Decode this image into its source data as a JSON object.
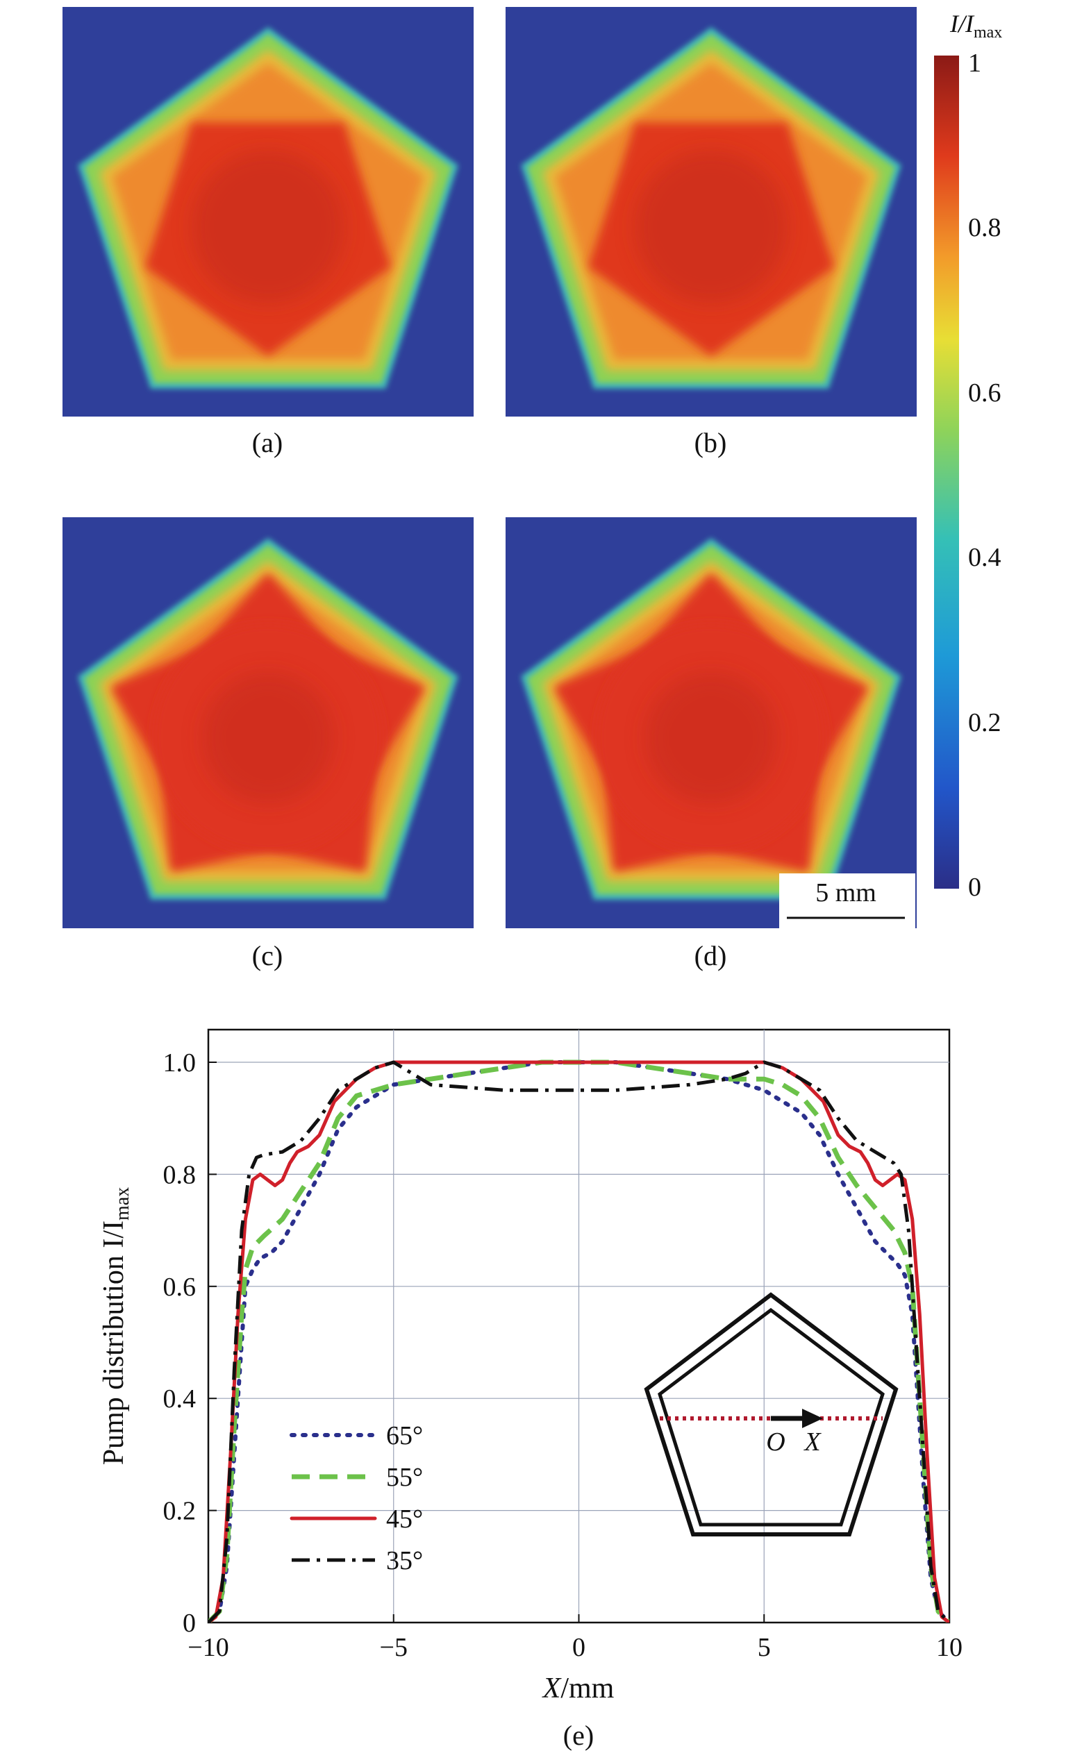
{
  "colors": {
    "background_blue": "#2f3f9a",
    "colorbar_stops": [
      "#2b2e87",
      "#2256c9",
      "#1e9ad7",
      "#35c0b6",
      "#8ed35a",
      "#e8de35",
      "#f29a2a",
      "#df3a1c",
      "#8b1a16"
    ],
    "series_65": "#2a2f8c",
    "series_55": "#6cc24a",
    "series_45": "#d0202a",
    "series_35": "#111111"
  },
  "maps": {
    "panel_labels": [
      "(a)",
      "(b)",
      "(c)",
      "(d)"
    ],
    "scalebar_label": "5 mm",
    "colorbar": {
      "title_main": "I/I",
      "title_sub": "max",
      "ticks": [
        "1",
        "0.8",
        "0.6",
        "0.4",
        "0.2",
        "0"
      ]
    }
  },
  "chart_data": {
    "type": "line",
    "panel_label": "(e)",
    "xlabel_main": "X",
    "xlabel_unit": "/mm",
    "ylabel_main": "Pump distribution I/I",
    "ylabel_sub": "max",
    "xlim": [
      -10,
      10
    ],
    "ylim": [
      0,
      1.05
    ],
    "xticks": [
      -10,
      -5,
      0,
      5,
      10
    ],
    "xtick_labels": [
      "−10",
      "−5",
      "0",
      "5",
      "10"
    ],
    "yticks": [
      0,
      0.2,
      0.4,
      0.6,
      0.8,
      1.0
    ],
    "ytick_labels": [
      "0",
      "0.2",
      "0.4",
      "0.6",
      "0.8",
      "1.0"
    ],
    "grid": true,
    "legend_position": "bottom-left",
    "inset_labels": [
      "O",
      "X"
    ],
    "series": [
      {
        "name": "65°",
        "style": "dotted",
        "x": [
          -10,
          -9.7,
          -9.5,
          -9.3,
          -9.1,
          -9.0,
          -8.8,
          -8.6,
          -8.3,
          -8.0,
          -7.5,
          -7.0,
          -6.5,
          -6.0,
          -5.5,
          -5.0,
          -4.0,
          -3.0,
          -2.0,
          -1.0,
          0,
          1.0,
          2.0,
          3.0,
          4.0,
          5.0,
          5.5,
          6.0,
          6.5,
          7.0,
          7.5,
          8.0,
          8.3,
          8.6,
          8.8,
          9.0,
          9.1,
          9.3,
          9.5,
          9.7,
          10
        ],
        "y": [
          0.0,
          0.02,
          0.1,
          0.3,
          0.5,
          0.6,
          0.63,
          0.65,
          0.66,
          0.68,
          0.74,
          0.8,
          0.88,
          0.92,
          0.94,
          0.96,
          0.97,
          0.98,
          0.99,
          1.0,
          1.0,
          1.0,
          0.99,
          0.98,
          0.97,
          0.95,
          0.93,
          0.91,
          0.87,
          0.8,
          0.74,
          0.68,
          0.66,
          0.64,
          0.62,
          0.55,
          0.45,
          0.25,
          0.08,
          0.02,
          0.0
        ]
      },
      {
        "name": "55°",
        "style": "dashed",
        "x": [
          -10,
          -9.7,
          -9.5,
          -9.3,
          -9.1,
          -9.0,
          -8.8,
          -8.5,
          -8.0,
          -7.5,
          -7.0,
          -6.5,
          -6.0,
          -5.5,
          -5.0,
          -4.0,
          -3.0,
          -2.0,
          -1.0,
          0,
          1.0,
          2.0,
          3.0,
          4.0,
          5.0,
          5.5,
          6.0,
          6.5,
          7.0,
          7.5,
          8.0,
          8.5,
          8.8,
          9.0,
          9.1,
          9.3,
          9.5,
          9.7,
          10
        ],
        "y": [
          0.0,
          0.02,
          0.12,
          0.35,
          0.55,
          0.63,
          0.67,
          0.69,
          0.72,
          0.77,
          0.82,
          0.9,
          0.94,
          0.95,
          0.96,
          0.97,
          0.98,
          0.99,
          1.0,
          1.0,
          1.0,
          0.99,
          0.98,
          0.97,
          0.97,
          0.96,
          0.94,
          0.9,
          0.83,
          0.78,
          0.74,
          0.7,
          0.66,
          0.6,
          0.5,
          0.3,
          0.1,
          0.02,
          0.0
        ]
      },
      {
        "name": "45°",
        "style": "solid",
        "x": [
          -10,
          -9.8,
          -9.6,
          -9.4,
          -9.2,
          -9.0,
          -8.8,
          -8.6,
          -8.4,
          -8.2,
          -8.0,
          -7.8,
          -7.6,
          -7.3,
          -7.0,
          -6.8,
          -6.6,
          -6.3,
          -6.0,
          -5.5,
          -5.0,
          -4.0,
          -3.0,
          -2.0,
          -1.0,
          0,
          1.0,
          2.0,
          3.0,
          4.0,
          5.0,
          5.5,
          6.0,
          6.3,
          6.6,
          6.8,
          7.0,
          7.3,
          7.6,
          7.8,
          8.0,
          8.2,
          8.4,
          8.6,
          8.8,
          9.0,
          9.2,
          9.4,
          9.6,
          9.8,
          10
        ],
        "y": [
          0.0,
          0.01,
          0.08,
          0.3,
          0.55,
          0.72,
          0.79,
          0.8,
          0.79,
          0.78,
          0.79,
          0.82,
          0.84,
          0.85,
          0.87,
          0.9,
          0.93,
          0.95,
          0.97,
          0.99,
          1.0,
          1.0,
          1.0,
          1.0,
          1.0,
          1.0,
          1.0,
          1.0,
          1.0,
          1.0,
          1.0,
          0.99,
          0.97,
          0.95,
          0.93,
          0.9,
          0.87,
          0.85,
          0.84,
          0.82,
          0.79,
          0.78,
          0.79,
          0.8,
          0.79,
          0.72,
          0.55,
          0.3,
          0.08,
          0.01,
          0.0
        ]
      },
      {
        "name": "35°",
        "style": "dashdot",
        "x": [
          -10,
          -9.7,
          -9.5,
          -9.3,
          -9.1,
          -8.9,
          -8.7,
          -8.5,
          -8.0,
          -7.5,
          -7.0,
          -6.5,
          -6.0,
          -5.5,
          -5.0,
          -4.5,
          -4.0,
          -3.0,
          -2.0,
          -1.0,
          0,
          1.0,
          2.0,
          3.0,
          4.0,
          4.5,
          5.0,
          5.5,
          6.0,
          6.5,
          7.0,
          7.5,
          8.0,
          8.5,
          8.7,
          8.9,
          9.1,
          9.3,
          9.5,
          9.7,
          10
        ],
        "y": [
          0.0,
          0.02,
          0.15,
          0.45,
          0.7,
          0.8,
          0.83,
          0.835,
          0.84,
          0.86,
          0.9,
          0.95,
          0.97,
          0.99,
          1.0,
          0.98,
          0.96,
          0.955,
          0.95,
          0.95,
          0.95,
          0.95,
          0.955,
          0.96,
          0.97,
          0.98,
          1.0,
          0.99,
          0.97,
          0.95,
          0.9,
          0.86,
          0.84,
          0.82,
          0.8,
          0.7,
          0.5,
          0.3,
          0.1,
          0.02,
          0.0
        ]
      }
    ]
  }
}
